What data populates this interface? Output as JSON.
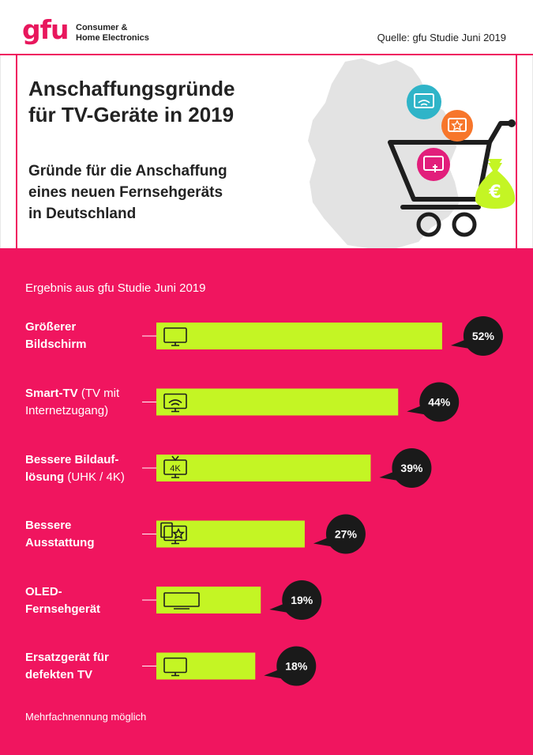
{
  "header": {
    "logo_word": "gfu",
    "logo_line1": "Consumer &",
    "logo_line2": "Home Electronics",
    "source": "Quelle: gfu Studie Juni 2019"
  },
  "intro": {
    "title_line1": "Anschaffungsgründe",
    "title_line2": "für TV-Geräte in 2019",
    "subtitle_line1": "Gründe für die Anschaffung",
    "subtitle_line2": "eines neuen Fernsehgeräts",
    "subtitle_line3": "in Deutschland",
    "currency_symbol": "€"
  },
  "result_label": "Ergebnis aus gfu Studie Juni 2019",
  "footnote": "Mehrfachnennung möglich",
  "categories": [
    {
      "bold": "Größerer",
      "line2_bold": "Bildschirm",
      "line2_normal": ""
    },
    {
      "bold": "Smart-TV",
      "rest1": " (TV mit",
      "line2_bold": "",
      "line2_normal": "Internetzugang)"
    },
    {
      "bold": "Bessere Bildauf-",
      "line2_bold": "lösung",
      "line2_normal": " (UHK / 4K)"
    },
    {
      "bold": "Bessere",
      "line2_bold": "Ausstattung",
      "line2_normal": ""
    },
    {
      "bold": "OLED-",
      "line2_bold": "Fernsehgerät",
      "line2_normal": ""
    },
    {
      "bold": "Ersatzgerät für",
      "line2_bold": "defekten TV",
      "line2_normal": ""
    }
  ],
  "chart_data": {
    "type": "bar",
    "orientation": "horizontal",
    "title": "Anschaffungsgründe für TV-Geräte in 2019",
    "subtitle": "Gründe für die Anschaffung eines neuen Fernsehgeräts in Deutschland",
    "categories": [
      "Größerer Bildschirm",
      "Smart-TV (TV mit Internetzugang)",
      "Bessere Bildauflösung (UHK / 4K)",
      "Bessere Ausstattung",
      "OLED-Fernsehgerät",
      "Ersatzgerät für defekten TV"
    ],
    "values": [
      52,
      44,
      39,
      27,
      19,
      18
    ],
    "value_labels": [
      "52%",
      "44%",
      "39%",
      "27%",
      "19%",
      "18%"
    ],
    "icons": [
      "tv-icon",
      "smart-tv-wifi-icon",
      "tv-4k-icon",
      "tv-star-icon",
      "oled-tv-icon",
      "tv-icon"
    ],
    "icon_text_4k": "4K",
    "unit": "%",
    "xlim": [
      0,
      100
    ],
    "bar_color": "#c4f524",
    "background_color": "#f0155f",
    "bubble_color": "#1a1a1a"
  }
}
